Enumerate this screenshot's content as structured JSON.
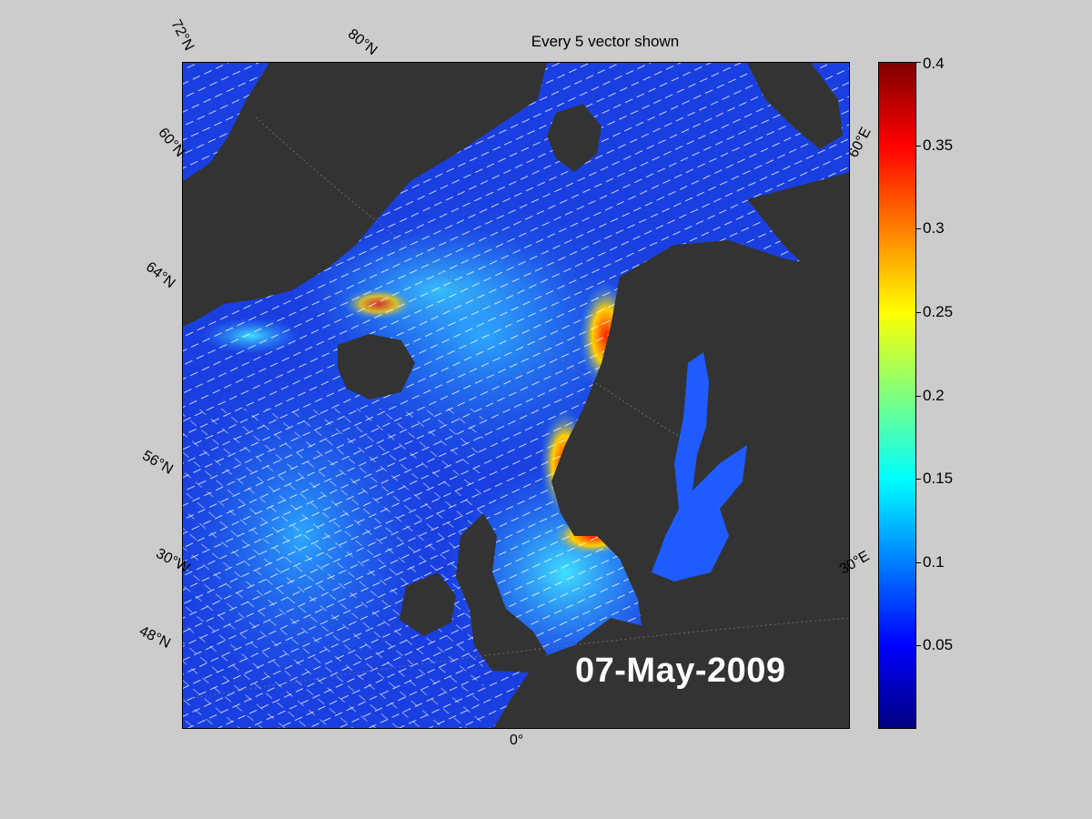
{
  "title": "Every 5 vector shown",
  "date_label": "07-May-2009",
  "grid_labels": {
    "lat_72": "72°N",
    "lat_80": "80°N",
    "lat_60_left": "60°N",
    "lat_64": "64°N",
    "lat_56": "56°N",
    "lat_48": "48°N",
    "lon_30w": "30°W",
    "lon_0": "0°",
    "lon_60e": "60°E",
    "lon_30e": "30°E"
  },
  "colorbar": {
    "min": 0,
    "max": 0.4,
    "ticks": [
      "0.4",
      "0.35",
      "0.3",
      "0.25",
      "0.2",
      "0.15",
      "0.1",
      "0.05"
    ],
    "tick_values": [
      0.4,
      0.35,
      0.3,
      0.25,
      0.2,
      0.15,
      0.1,
      0.05
    ],
    "colormap": "jet"
  },
  "colors": {
    "land": "#333333",
    "figure_background": "#cccccc",
    "ocean_base": "#1a3fe0",
    "vectors": "#ffffff"
  }
}
